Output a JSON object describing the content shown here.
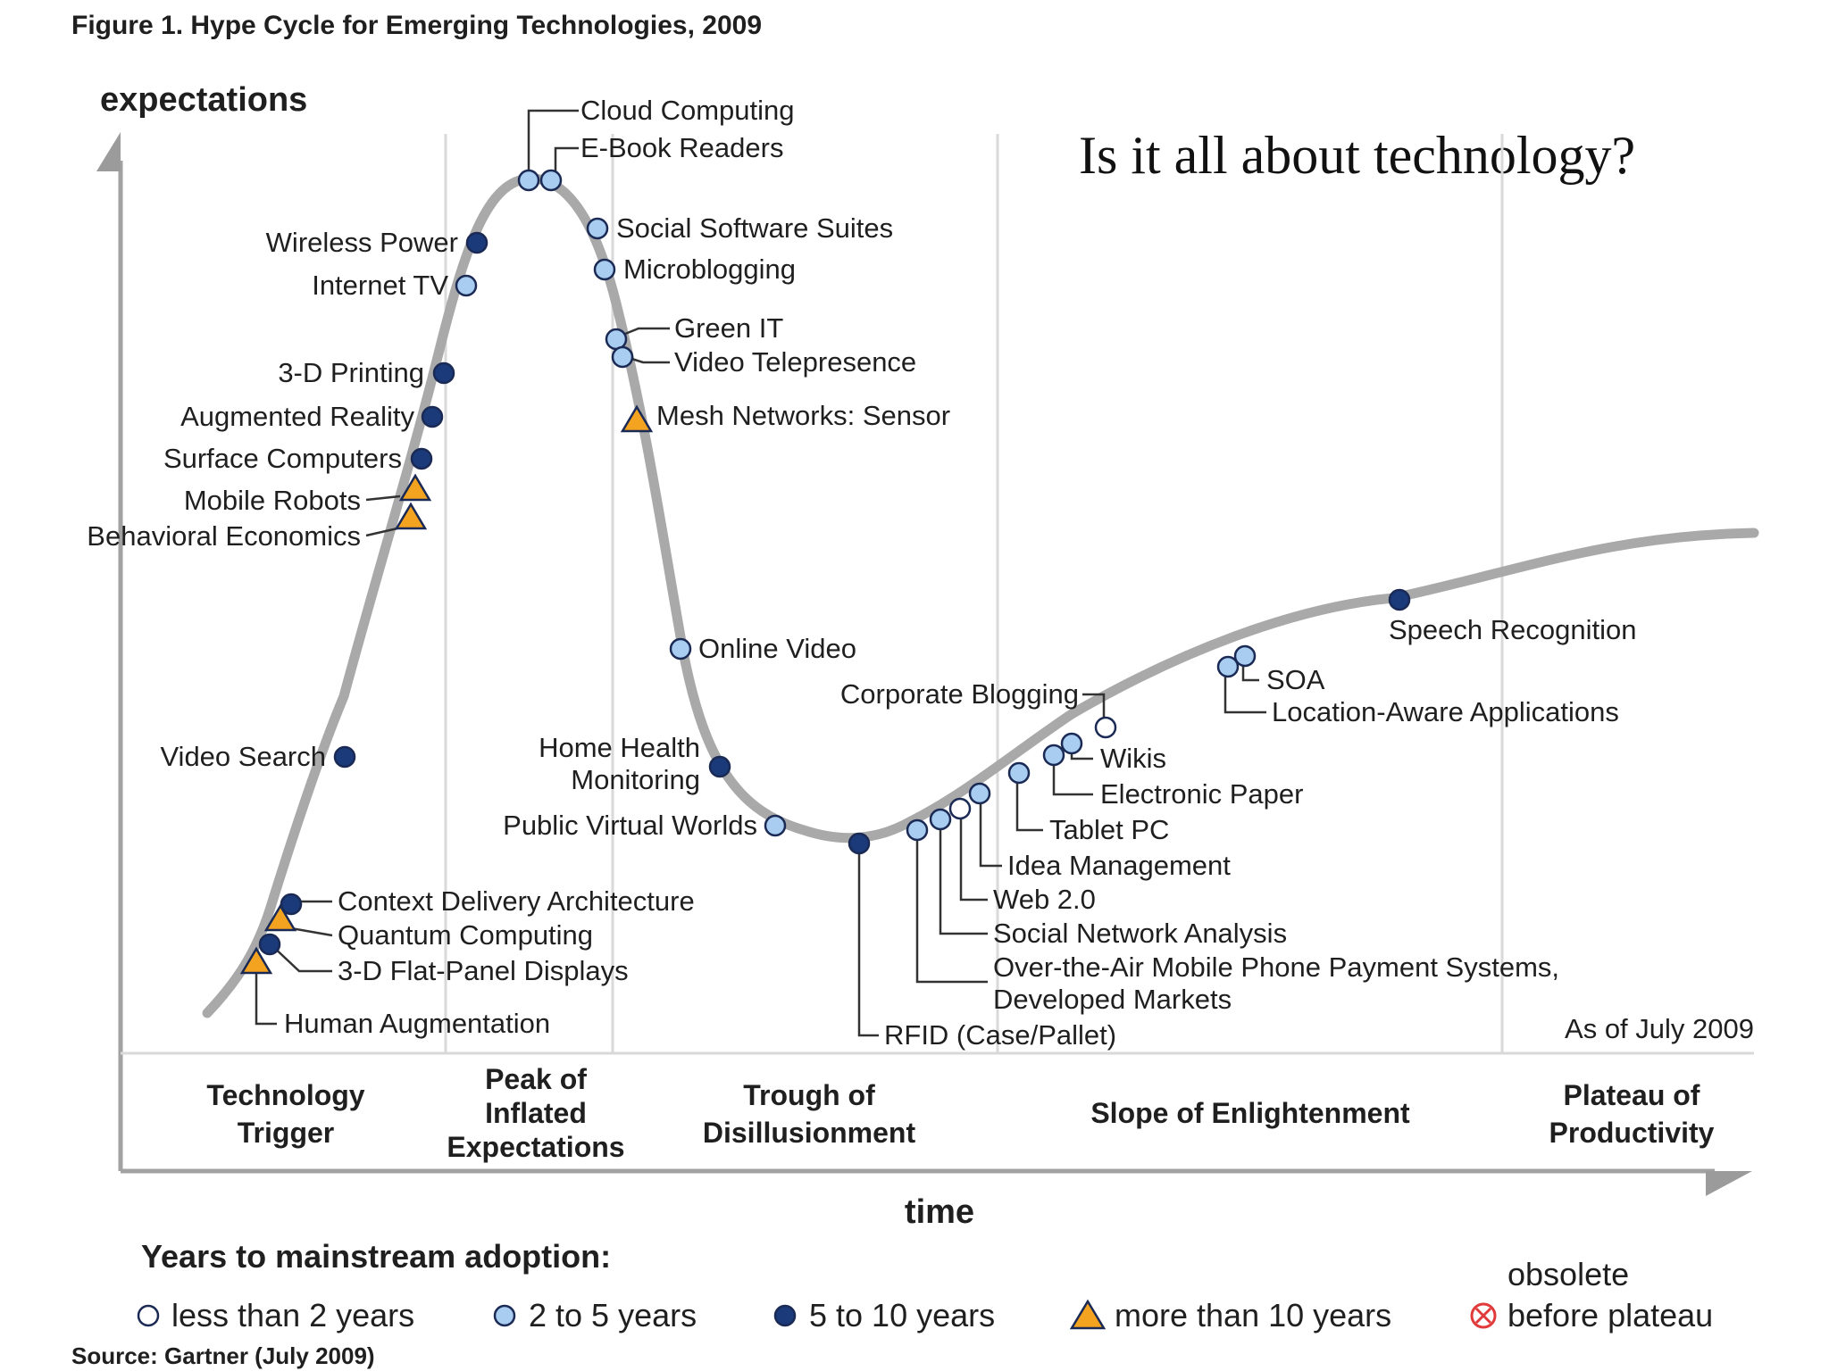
{
  "figure_title": "Figure 1. Hype Cycle for Emerging Technologies, 2009",
  "overlay_question": "Is it all about technology?",
  "as_of": "As of July 2009",
  "source": "Source: Gartner (July 2009)",
  "colors": {
    "curve": "#a9a9a9",
    "axis": "#9b9b9b",
    "dark_blue": "#1a3a7a",
    "light_blue": "#a9cdf0",
    "triangle": "#f4a321",
    "obsolete": "#e03a3a"
  },
  "chart_data": {
    "type": "line",
    "title": "Figure 1. Hype Cycle for Emerging Technologies, 2009",
    "xlabel": "time",
    "ylabel": "expectations",
    "phases": [
      "Technology Trigger",
      "Peak of Inflated Expectations",
      "Trough of Disillusionment",
      "Slope of Enlightenment",
      "Plateau of Productivity"
    ],
    "legend": {
      "title": "Years to mainstream adoption:",
      "entries": [
        {
          "key": "lt2",
          "label": "less than 2 years"
        },
        {
          "key": "2to5",
          "label": "2 to 5 years"
        },
        {
          "key": "5to10",
          "label": "5 to 10 years"
        },
        {
          "key": "gt10",
          "label": "more than 10 years"
        },
        {
          "key": "obsolete",
          "label": "obsolete before plateau"
        }
      ]
    },
    "technologies": [
      {
        "name": "Cloud Computing",
        "category": "2to5"
      },
      {
        "name": "E-Book Readers",
        "category": "2to5"
      },
      {
        "name": "Wireless Power",
        "category": "5to10"
      },
      {
        "name": "Internet TV",
        "category": "2to5"
      },
      {
        "name": "Social Software Suites",
        "category": "2to5"
      },
      {
        "name": "Microblogging",
        "category": "2to5"
      },
      {
        "name": "Green IT",
        "category": "2to5"
      },
      {
        "name": "Video Telepresence",
        "category": "2to5"
      },
      {
        "name": "3-D Printing",
        "category": "5to10"
      },
      {
        "name": "Mesh Networks: Sensor",
        "category": "gt10"
      },
      {
        "name": "Augmented Reality",
        "category": "5to10"
      },
      {
        "name": "Surface Computers",
        "category": "5to10"
      },
      {
        "name": "Mobile Robots",
        "category": "gt10"
      },
      {
        "name": "Behavioral Economics",
        "category": "gt10"
      },
      {
        "name": "Online Video",
        "category": "2to5"
      },
      {
        "name": "Speech Recognition",
        "category": "5to10"
      },
      {
        "name": "SOA",
        "category": "2to5"
      },
      {
        "name": "Location-Aware Applications",
        "category": "2to5"
      },
      {
        "name": "Corporate Blogging",
        "category": "lt2"
      },
      {
        "name": "Video Search",
        "category": "5to10"
      },
      {
        "name": "Home Health Monitoring",
        "category": "5to10"
      },
      {
        "name": "Wikis",
        "category": "2to5"
      },
      {
        "name": "Electronic Paper",
        "category": "2to5"
      },
      {
        "name": "Public Virtual Worlds",
        "category": "2to5"
      },
      {
        "name": "Tablet PC",
        "category": "2to5"
      },
      {
        "name": "Idea Management",
        "category": "2to5"
      },
      {
        "name": "Web 2.0",
        "category": "lt2"
      },
      {
        "name": "Social Network Analysis",
        "category": "2to5"
      },
      {
        "name": "Context Delivery Architecture",
        "category": "5to10"
      },
      {
        "name": "Quantum Computing",
        "category": "gt10"
      },
      {
        "name": "3-D Flat-Panel Displays",
        "category": "5to10"
      },
      {
        "name": "Over-the-Air Mobile Phone Payment Systems, Developed Markets",
        "category": "2to5"
      },
      {
        "name": "Human Augmentation",
        "category": "gt10"
      },
      {
        "name": "RFID (Case/Pallet)",
        "category": "5to10"
      }
    ]
  }
}
